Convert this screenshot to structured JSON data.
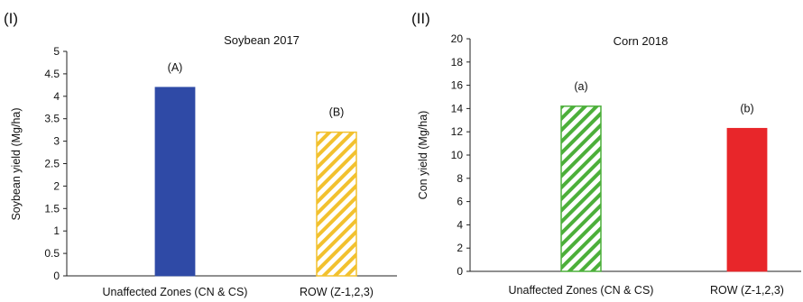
{
  "chart_data": [
    {
      "type": "bar",
      "panel_label": "(I)",
      "title": "Soybean 2017",
      "ylabel": "Soybean yield (Mg/ha)",
      "xlabel": "",
      "ylim": [
        0,
        5
      ],
      "yticks": [
        0,
        0.5,
        1,
        1.5,
        2,
        2.5,
        3,
        3.5,
        4,
        4.5,
        5
      ],
      "ytick_labels": [
        "0",
        "0.5",
        "1",
        "1.5",
        "2",
        "2.5",
        "3",
        "3.5",
        "4",
        "4.5",
        "5"
      ],
      "categories": [
        "Unaffected Zones (CN & CS)",
        "ROW (Z-1,2,3)"
      ],
      "values": [
        4.2,
        3.2
      ],
      "annotations": [
        "(A)",
        "(B)"
      ],
      "bar_colors": [
        "#2f4aa6",
        "#f2c12e"
      ],
      "bar_patterns": [
        "solid",
        "hatched"
      ],
      "grid": false
    },
    {
      "type": "bar",
      "panel_label": "(II)",
      "title": "Corn 2018",
      "ylabel": "Con yield (Mg/ha)",
      "xlabel": "",
      "ylim": [
        0,
        20
      ],
      "yticks": [
        0,
        2,
        4,
        6,
        8,
        10,
        12,
        14,
        16,
        18,
        20
      ],
      "ytick_labels": [
        "0",
        "2",
        "4",
        "6",
        "8",
        "10",
        "12",
        "14",
        "16",
        "18",
        "20"
      ],
      "categories": [
        "Unaffected Zones (CN & CS)",
        "ROW (Z-1,2,3)"
      ],
      "values": [
        14.2,
        12.3
      ],
      "annotations": [
        "(a)",
        "(b)"
      ],
      "bar_colors": [
        "#4caf3a",
        "#e8262a"
      ],
      "bar_patterns": [
        "hatched",
        "solid"
      ],
      "grid": false
    }
  ]
}
